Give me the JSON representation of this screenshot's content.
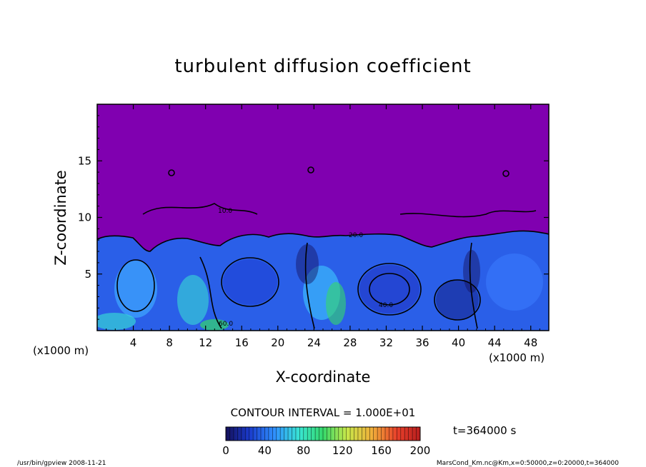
{
  "chart_data": {
    "type": "heatmap",
    "title": "turbulent diffusion coefficient",
    "xlabel": "X-coordinate",
    "ylabel": "Z-coordinate",
    "x_unit": "(x1000 m)",
    "z_unit": "(x1000 m)",
    "xlim": [
      0,
      50
    ],
    "ylim": [
      0,
      20
    ],
    "x_ticks": [
      4,
      8,
      12,
      16,
      20,
      24,
      28,
      32,
      36,
      40,
      44,
      48
    ],
    "y_ticks": [
      5,
      10,
      15
    ],
    "contour_interval": "CONTOUR INTERVAL = 1.000E+01",
    "contour_labels": [
      "20.0",
      "20.0",
      "40.0",
      "60.0",
      "10.0",
      "0.00",
      "0.00",
      "0.00"
    ],
    "colorbar": {
      "range": [
        0,
        200
      ],
      "ticks": [
        0,
        40,
        80,
        120,
        160,
        200
      ],
      "colors": [
        "#14105a",
        "#1a3acb",
        "#2f90ff",
        "#39e6d2",
        "#35d86a",
        "#c6e84a",
        "#f0b03a",
        "#e8402a",
        "#b81e1e"
      ]
    },
    "time_label": "t=364000 s",
    "background_color": "#8000b0",
    "turbulent_layer_top_km": 8.3,
    "footer_left": "/usr/bin/gpview   2008-11-21",
    "footer_right": "MarsCond_Km.nc@Km,x=0:50000,z=0:20000,t=364000"
  }
}
